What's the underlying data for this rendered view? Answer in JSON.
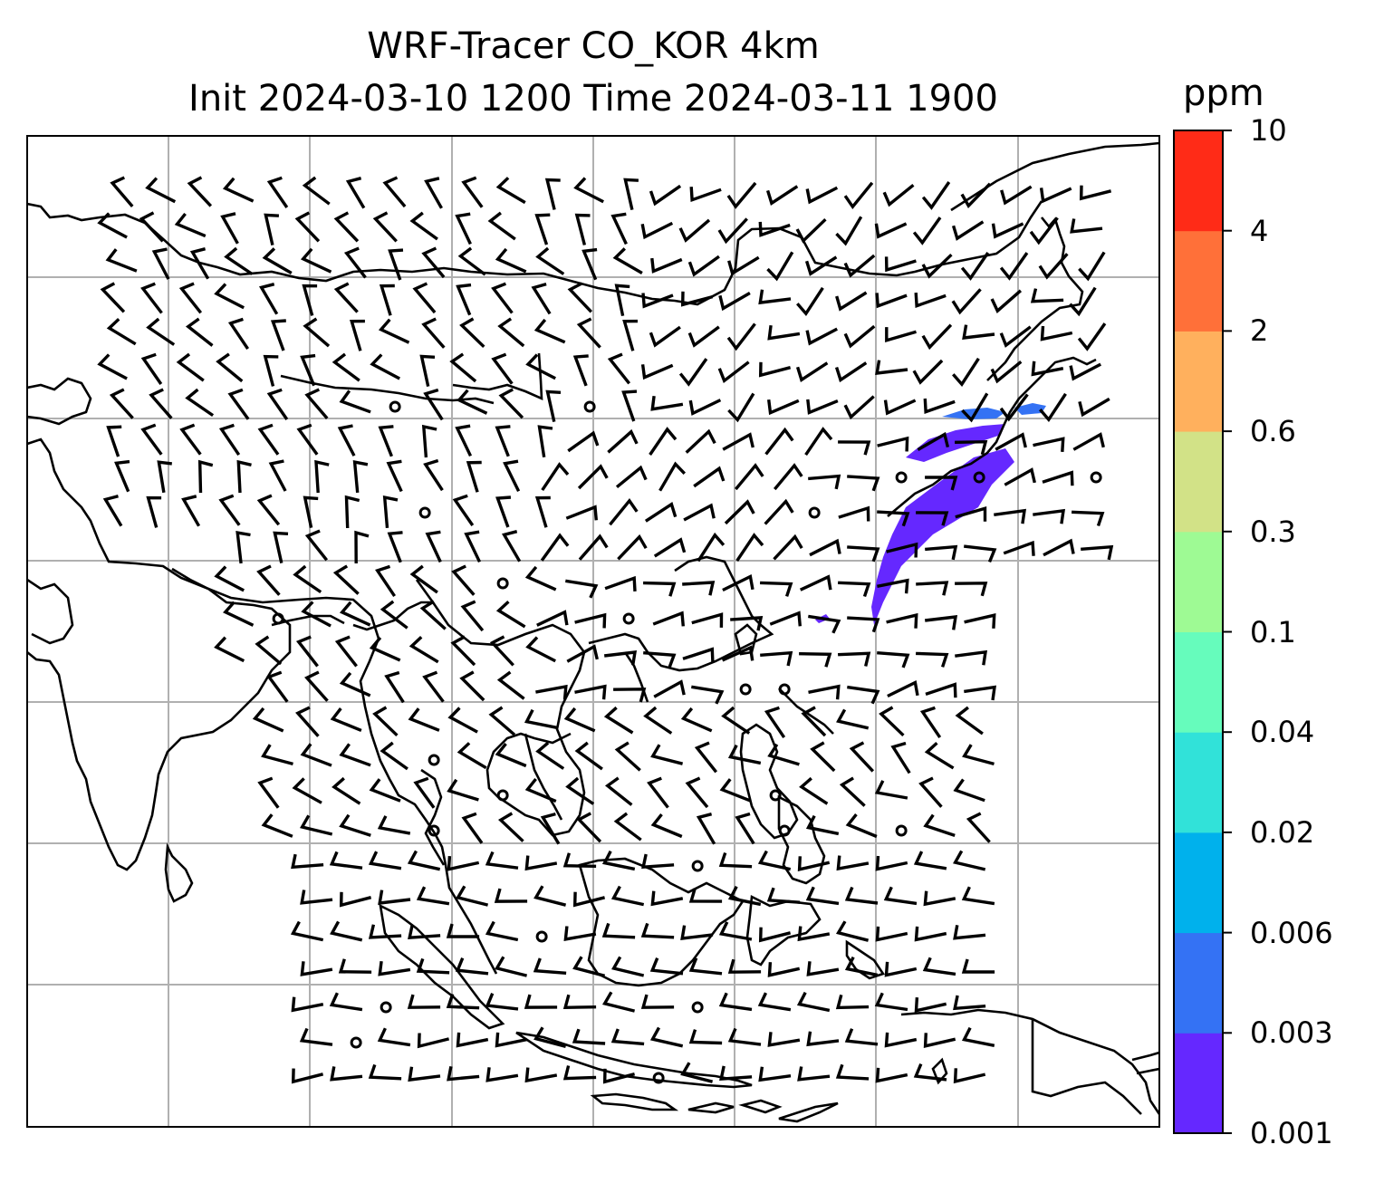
{
  "title": {
    "line1": "WRF-Tracer CO_KOR 4km",
    "line2": "Init 2024-03-10 1200 Time 2024-03-11 1900"
  },
  "colorbar": {
    "unit": "ppm",
    "levels": [
      "0.001",
      "0.003",
      "0.006",
      "0.02",
      "0.04",
      "0.1",
      "0.3",
      "0.6",
      "2",
      "4",
      "10"
    ],
    "colors": [
      "#6528ff",
      "#3472f4",
      "#00b1ec",
      "#31e2d9",
      "#66fcbc",
      "#9efa94",
      "#d2e287",
      "#ffb05d",
      "#ff7039",
      "#ff2b17"
    ]
  },
  "map": {
    "gridlines": true,
    "plume_color": "#6528ff",
    "plume_edge_color": "#3472f4"
  }
}
